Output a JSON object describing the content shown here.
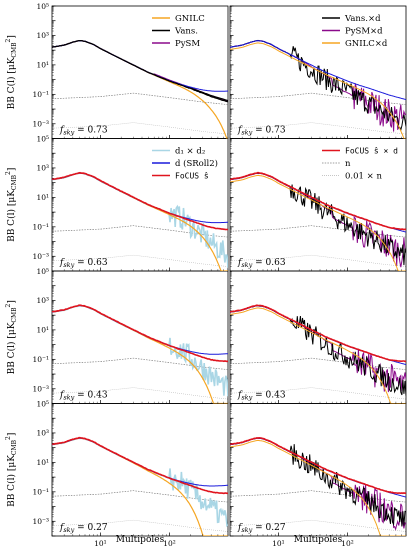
{
  "figure": {
    "ylabel": "BB C(l) [μK",
    "ylabel_sub": "CMB",
    "ylabel_sup": "2",
    "ylabel_end": "]",
    "xlabel": "Multipoles"
  },
  "chart_data": {
    "type": "line",
    "xscale": "log",
    "yscale": "log",
    "xlim": [
      2,
      700
    ],
    "ylim": [
      0.0001,
      100000
    ],
    "x_ticks": [
      "10¹",
      "10²"
    ],
    "y_ticks": [
      "10⁻³",
      "10⁻¹",
      "10¹",
      "10³",
      "10⁵"
    ],
    "colors": {
      "GNILC": "#f5a623",
      "Vans": "#000000",
      "PySM": "#8b0a8b",
      "d1d2": "#a9d6e5",
      "d": "#1a1adb",
      "focus": "#e0141e",
      "noise": "#808080"
    },
    "legends": [
      {
        "row": 0,
        "col": 0,
        "placement": "top-right",
        "entries": [
          {
            "series": "GNILC",
            "label": "GNILC",
            "style": "line"
          },
          {
            "series": "Vans",
            "label": "Vans.",
            "style": "line"
          },
          {
            "series": "PySM",
            "label": "PySM",
            "style": "line"
          }
        ]
      },
      {
        "row": 0,
        "col": 1,
        "placement": "top-right",
        "entries": [
          {
            "series": "Vans",
            "label": "Vans.×d",
            "style": "line"
          },
          {
            "series": "PySM",
            "label": "PySM×d",
            "style": "line"
          },
          {
            "series": "GNILC",
            "label": "GNILC×d",
            "style": "line"
          }
        ]
      },
      {
        "row": 1,
        "col": 0,
        "placement": "top-right",
        "entries": [
          {
            "series": "d1d2",
            "label": "d₁ × d₂",
            "style": "line"
          },
          {
            "series": "d",
            "label": "d (SRoll2)",
            "style": "line"
          },
          {
            "series": "focus",
            "label": "FoCUS ŝ",
            "style": "line"
          }
        ]
      },
      {
        "row": 1,
        "col": 1,
        "placement": "top-right",
        "entries": [
          {
            "series": "focus",
            "label": "FoCUS ŝ × d",
            "style": "line"
          },
          {
            "series": "noise",
            "label": "n",
            "style": "dashed"
          },
          {
            "series": "noise",
            "label": "0.01 × n",
            "style": "dotted"
          }
        ]
      }
    ],
    "panels": [
      {
        "row": 0,
        "col": 0,
        "fsky": "f_sky = 0.73"
      },
      {
        "row": 0,
        "col": 1,
        "fsky": "f_sky = 0.73"
      },
      {
        "row": 1,
        "col": 0,
        "fsky": "f_sky = 0.63"
      },
      {
        "row": 1,
        "col": 1,
        "fsky": "f_sky = 0.63"
      },
      {
        "row": 2,
        "col": 0,
        "fsky": "f_sky = 0.43"
      },
      {
        "row": 2,
        "col": 1,
        "fsky": "f_sky = 0.43"
      },
      {
        "row": 3,
        "col": 0,
        "fsky": "f_sky = 0.27"
      },
      {
        "row": 3,
        "col": 1,
        "fsky": "f_sky = 0.27"
      }
    ],
    "model": {
      "signal_peak": {
        "x": 5,
        "y": 450
      },
      "signal_at": [
        [
          2,
          160
        ],
        [
          3,
          220
        ],
        [
          4,
          350
        ],
        [
          5,
          450
        ],
        [
          6,
          400
        ],
        [
          8,
          240
        ],
        [
          10,
          130
        ],
        [
          20,
          25
        ],
        [
          50,
          3
        ],
        [
          100,
          0.8
        ],
        [
          200,
          0.25
        ],
        [
          400,
          0.07
        ],
        [
          700,
          0.03
        ]
      ],
      "noise_at": [
        [
          2,
          0.05
        ],
        [
          10,
          0.07
        ],
        [
          30,
          0.12
        ],
        [
          100,
          0.06
        ],
        [
          300,
          0.03
        ],
        [
          700,
          0.02
        ]
      ]
    }
  }
}
